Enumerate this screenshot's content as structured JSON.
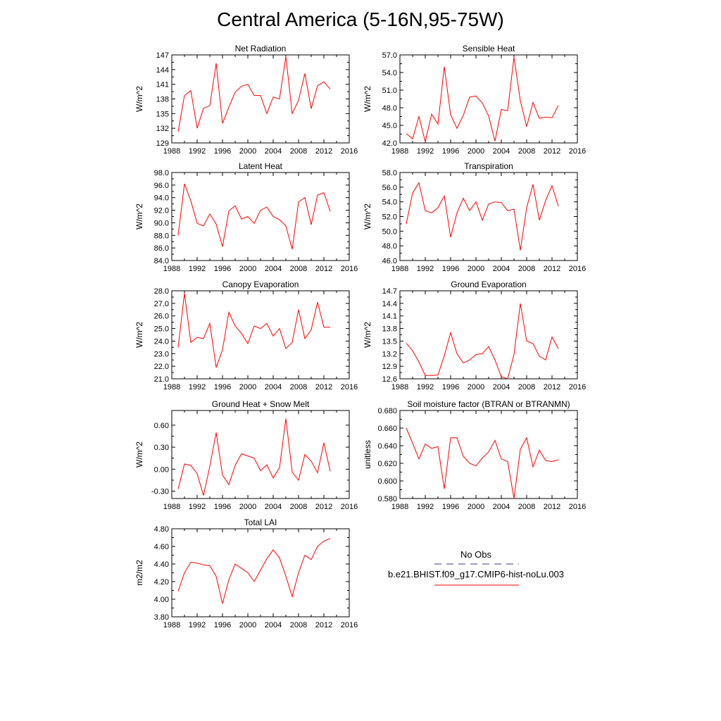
{
  "title": "Central America (5-16N,95-75W)",
  "xticks": [
    "1988",
    "1992",
    "1996",
    "2000",
    "2004",
    "2008",
    "2012",
    "2016"
  ],
  "legend": {
    "obs_label": "No Obs",
    "obs_color": "#3a3a8c",
    "model_label": "b.e21.BHIST.f09_g17.CMIP6-hist-noLu.003",
    "model_color": "#ff0000"
  },
  "chart_data": [
    {
      "type": "line",
      "title": "Net Radiation",
      "ylabel": "W/m^2",
      "xlim": [
        1988,
        2016
      ],
      "ylim": [
        129,
        147
      ],
      "yticks": [
        "129",
        "132",
        "135",
        "138",
        "141",
        "144",
        "147"
      ],
      "x": [
        1989,
        1990,
        1991,
        1992,
        1993,
        1994,
        1995,
        1996,
        1997,
        1998,
        1999,
        2000,
        2001,
        2002,
        2003,
        2004,
        2005,
        2006,
        2007,
        2008,
        2009,
        2010,
        2011,
        2012,
        2013
      ],
      "series": [
        {
          "color": "#ff0000",
          "values": [
            131.3,
            138.7,
            139.7,
            132.0,
            136.1,
            136.6,
            145.3,
            133.0,
            136.3,
            139.4,
            140.6,
            141.0,
            138.7,
            138.7,
            135.0,
            138.4,
            138.0,
            146.7,
            135.0,
            137.7,
            143.2,
            136.0,
            140.7,
            141.5,
            140.0
          ]
        }
      ]
    },
    {
      "type": "line",
      "title": "Sensible Heat",
      "ylabel": "W/m^2",
      "xlim": [
        1988,
        2016
      ],
      "ylim": [
        42.0,
        57.0
      ],
      "yticks": [
        "42.0",
        "45.0",
        "48.0",
        "51.0",
        "54.0",
        "57.0"
      ],
      "x": [
        1989,
        1990,
        1991,
        1992,
        1993,
        1994,
        1995,
        1996,
        1997,
        1998,
        1999,
        2000,
        2001,
        2002,
        2003,
        2004,
        2005,
        2006,
        2007,
        2008,
        2009,
        2010,
        2011,
        2012,
        2013
      ],
      "series": [
        {
          "color": "#ff0000",
          "values": [
            43.6,
            42.7,
            46.5,
            42.2,
            46.9,
            45.2,
            55.0,
            46.8,
            44.5,
            46.7,
            49.8,
            50.0,
            48.8,
            46.6,
            42.3,
            47.7,
            47.5,
            56.6,
            49.2,
            44.8,
            48.9,
            46.2,
            46.4,
            46.3,
            48.4
          ]
        }
      ]
    },
    {
      "type": "line",
      "title": "Latent Heat",
      "ylabel": "W/m^2",
      "xlim": [
        1988,
        2016
      ],
      "ylim": [
        84.0,
        98.0
      ],
      "yticks": [
        "84.0",
        "86.0",
        "88.0",
        "90.0",
        "92.0",
        "94.0",
        "96.0",
        "98.0"
      ],
      "x": [
        1989,
        1990,
        1991,
        1992,
        1993,
        1994,
        1995,
        1996,
        1997,
        1998,
        1999,
        2000,
        2001,
        2002,
        2003,
        2004,
        2005,
        2006,
        2007,
        2008,
        2009,
        2010,
        2011,
        2012,
        2013
      ],
      "series": [
        {
          "color": "#ff0000",
          "values": [
            88.0,
            96.2,
            93.5,
            89.9,
            89.5,
            91.4,
            89.8,
            86.2,
            91.9,
            92.7,
            90.6,
            91.0,
            89.9,
            92.0,
            92.5,
            91.0,
            90.5,
            89.5,
            85.8,
            93.3,
            94.0,
            89.7,
            94.4,
            94.8,
            91.8
          ]
        }
      ]
    },
    {
      "type": "line",
      "title": "Transpiration",
      "ylabel": "W/m^2",
      "xlim": [
        1988,
        2016
      ],
      "ylim": [
        46.0,
        58.0
      ],
      "yticks": [
        "46.0",
        "48.0",
        "50.0",
        "52.0",
        "54.0",
        "56.0",
        "58.0"
      ],
      "x": [
        1989,
        1990,
        1991,
        1992,
        1993,
        1994,
        1995,
        1996,
        1997,
        1998,
        1999,
        2000,
        2001,
        2002,
        2003,
        2004,
        2005,
        2006,
        2007,
        2008,
        2009,
        2010,
        2011,
        2012,
        2013
      ],
      "series": [
        {
          "color": "#ff0000",
          "values": [
            51.0,
            55.2,
            56.6,
            52.8,
            52.5,
            53.2,
            54.8,
            49.2,
            52.5,
            54.5,
            52.8,
            54.0,
            51.5,
            53.7,
            54.0,
            53.9,
            52.8,
            53.0,
            47.4,
            53.2,
            56.4,
            51.5,
            54.2,
            56.2,
            53.4
          ]
        }
      ]
    },
    {
      "type": "line",
      "title": "Canopy Evaporation",
      "ylabel": "W/m^2",
      "xlim": [
        1988,
        2016
      ],
      "ylim": [
        21.0,
        28.0
      ],
      "yticks": [
        "21.0",
        "22.0",
        "23.0",
        "24.0",
        "25.0",
        "26.0",
        "27.0",
        "28.0"
      ],
      "x": [
        1989,
        1990,
        1991,
        1992,
        1993,
        1994,
        1995,
        1996,
        1997,
        1998,
        1999,
        2000,
        2001,
        2002,
        2003,
        2004,
        2005,
        2006,
        2007,
        2008,
        2009,
        2010,
        2011,
        2012,
        2013
      ],
      "series": [
        {
          "color": "#ff0000",
          "values": [
            23.5,
            27.8,
            23.9,
            24.3,
            24.2,
            25.4,
            21.9,
            23.3,
            26.3,
            25.2,
            24.6,
            23.8,
            25.2,
            25.0,
            25.4,
            24.4,
            25.0,
            23.4,
            23.9,
            26.5,
            24.2,
            24.9,
            27.1,
            25.1,
            25.1
          ]
        }
      ]
    },
    {
      "type": "line",
      "title": "Ground Evaporation",
      "ylabel": "W/m^2",
      "xlim": [
        1988,
        2016
      ],
      "ylim": [
        12.6,
        14.7
      ],
      "yticks": [
        "12.6",
        "12.9",
        "13.2",
        "13.5",
        "13.8",
        "14.1",
        "14.4",
        "14.7"
      ],
      "x": [
        1989,
        1990,
        1991,
        1992,
        1993,
        1994,
        1995,
        1996,
        1997,
        1998,
        1999,
        2000,
        2001,
        2002,
        2003,
        2004,
        2005,
        2006,
        2007,
        2008,
        2009,
        2010,
        2011,
        2012,
        2013
      ],
      "series": [
        {
          "color": "#ff0000",
          "values": [
            13.45,
            13.27,
            13.0,
            12.68,
            12.68,
            12.69,
            13.15,
            13.7,
            13.2,
            12.98,
            13.05,
            13.18,
            13.2,
            13.37,
            13.05,
            12.65,
            12.6,
            13.18,
            14.4,
            13.5,
            13.44,
            13.14,
            13.05,
            13.6,
            13.32
          ]
        }
      ]
    },
    {
      "type": "line",
      "title": "Ground Heat + Snow Melt",
      "ylabel": "W/m^2",
      "xlim": [
        1988,
        2016
      ],
      "ylim": [
        -0.4,
        0.8
      ],
      "yticks": [
        "-0.30",
        "0.00",
        "0.30",
        "0.60"
      ],
      "ytick_values": [
        -0.3,
        0.0,
        0.3,
        0.6
      ],
      "x": [
        1989,
        1990,
        1991,
        1992,
        1993,
        1994,
        1995,
        1996,
        1997,
        1998,
        1999,
        2000,
        2001,
        2002,
        2003,
        2004,
        2005,
        2006,
        2007,
        2008,
        2009,
        2010,
        2011,
        2012,
        2013
      ],
      "series": [
        {
          "color": "#ff0000",
          "values": [
            -0.27,
            0.07,
            0.05,
            -0.06,
            -0.36,
            0.04,
            0.5,
            -0.08,
            -0.21,
            0.05,
            0.21,
            0.18,
            0.15,
            -0.02,
            0.06,
            -0.12,
            0.02,
            0.69,
            -0.04,
            -0.15,
            0.2,
            0.11,
            -0.05,
            0.36,
            -0.03
          ]
        }
      ]
    },
    {
      "type": "line",
      "title": "Soil moisture factor (BTRAN or BTRANMN)",
      "ylabel": "unitless",
      "xlim": [
        1988,
        2016
      ],
      "ylim": [
        0.58,
        0.68
      ],
      "yticks": [
        "0.580",
        "0.600",
        "0.620",
        "0.640",
        "0.660",
        "0.680"
      ],
      "x": [
        1989,
        1990,
        1991,
        1992,
        1993,
        1994,
        1995,
        1996,
        1997,
        1998,
        1999,
        2000,
        2001,
        2002,
        2003,
        2004,
        2005,
        2006,
        2007,
        2008,
        2009,
        2010,
        2011,
        2012,
        2013
      ],
      "series": [
        {
          "color": "#ff0000",
          "values": [
            0.66,
            0.643,
            0.625,
            0.642,
            0.637,
            0.639,
            0.591,
            0.649,
            0.649,
            0.628,
            0.62,
            0.617,
            0.626,
            0.633,
            0.646,
            0.625,
            0.622,
            0.58,
            0.636,
            0.649,
            0.616,
            0.635,
            0.623,
            0.622,
            0.624
          ]
        }
      ]
    },
    {
      "type": "line",
      "title": "Total LAI",
      "ylabel": "m2/m2",
      "xlim": [
        1988,
        2016
      ],
      "ylim": [
        3.8,
        4.8
      ],
      "yticks": [
        "3.80",
        "4.00",
        "4.20",
        "4.40",
        "4.60",
        "4.80"
      ],
      "x": [
        1989,
        1990,
        1991,
        1992,
        1993,
        1994,
        1995,
        1996,
        1997,
        1998,
        1999,
        2000,
        2001,
        2002,
        2003,
        2004,
        2005,
        2006,
        2007,
        2008,
        2009,
        2010,
        2011,
        2012,
        2013
      ],
      "series": [
        {
          "color": "#ff0000",
          "values": [
            4.09,
            4.3,
            4.42,
            4.41,
            4.39,
            4.38,
            4.26,
            3.95,
            4.22,
            4.4,
            4.35,
            4.3,
            4.2,
            4.33,
            4.46,
            4.56,
            4.47,
            4.26,
            4.03,
            4.3,
            4.5,
            4.45,
            4.6,
            4.66,
            4.69
          ]
        }
      ]
    }
  ]
}
